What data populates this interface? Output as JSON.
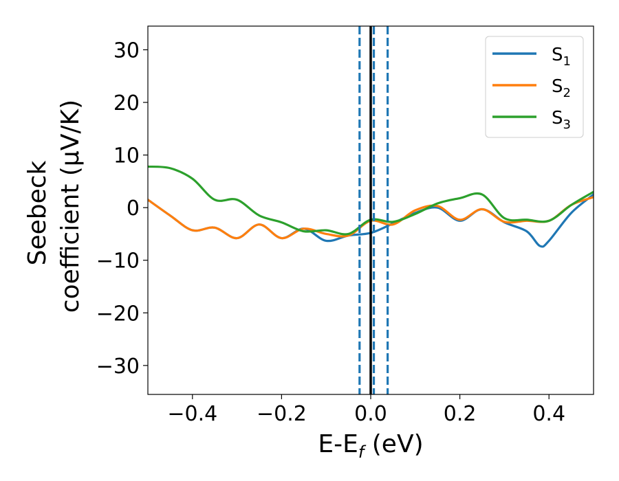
{
  "chart_data": {
    "type": "line",
    "xlabel": "E-E",
    "xlabel_sub": "f",
    "xlabel_unit": " (eV)",
    "ylabel_line1": "Seebeck",
    "ylabel_line2": "coefficient  (μV/K)",
    "xlim": [
      -0.5,
      0.5
    ],
    "ylim": [
      -35.5,
      34.5
    ],
    "x_ticks": [
      -0.4,
      -0.2,
      0.0,
      0.2,
      0.4
    ],
    "x_tick_labels": [
      "−0.4",
      "−0.2",
      "0.0",
      "0.2",
      "0.4"
    ],
    "y_ticks": [
      30,
      20,
      10,
      0,
      -10,
      -20,
      -30
    ],
    "y_tick_labels": [
      "30",
      "20",
      "10",
      "0",
      "−10",
      "−20",
      "−30"
    ],
    "grid": false,
    "legend_position": "top-right",
    "vertical_lines": [
      {
        "x": 0.0,
        "style": "solid",
        "color": "#000000"
      },
      {
        "x": -0.025,
        "style": "dashed",
        "color": "#1f77b4"
      },
      {
        "x": 0.007,
        "style": "dashed",
        "color": "#1f77b4"
      },
      {
        "x": 0.038,
        "style": "dashed",
        "color": "#1f77b4"
      }
    ],
    "series": [
      {
        "name": "S",
        "sub": "1",
        "color": "#1f77b4",
        "x": [
          -0.5,
          -0.45,
          -0.4,
          -0.35,
          -0.3,
          -0.25,
          -0.2,
          -0.15,
          -0.1,
          -0.05,
          0.0,
          0.05,
          0.1,
          0.15,
          0.2,
          0.25,
          0.3,
          0.35,
          0.38,
          0.4,
          0.45,
          0.5
        ],
        "y": [
          1.5,
          -1.5,
          -4.3,
          -3.8,
          -5.8,
          -3.2,
          -5.8,
          -4.0,
          -6.3,
          -5.3,
          -4.8,
          -3.0,
          -1.0,
          0.0,
          -2.5,
          -0.3,
          -2.8,
          -4.5,
          -7.3,
          -6.3,
          -1.0,
          2.5
        ]
      },
      {
        "name": "S",
        "sub": "2",
        "color": "#ff7f0e",
        "x": [
          -0.5,
          -0.45,
          -0.4,
          -0.35,
          -0.3,
          -0.25,
          -0.2,
          -0.15,
          -0.1,
          -0.05,
          0.0,
          0.05,
          0.1,
          0.15,
          0.2,
          0.25,
          0.3,
          0.35,
          0.4,
          0.45,
          0.5
        ],
        "y": [
          1.5,
          -1.5,
          -4.3,
          -3.8,
          -5.8,
          -3.2,
          -5.8,
          -4.0,
          -5.0,
          -5.3,
          -2.5,
          -3.2,
          -0.5,
          0.3,
          -2.3,
          -0.3,
          -2.7,
          -2.5,
          -2.5,
          0.5,
          2.0
        ]
      },
      {
        "name": "S",
        "sub": "3",
        "color": "#2ca02c",
        "x": [
          -0.5,
          -0.45,
          -0.4,
          -0.35,
          -0.3,
          -0.25,
          -0.2,
          -0.15,
          -0.1,
          -0.05,
          0.0,
          0.05,
          0.1,
          0.15,
          0.2,
          0.25,
          0.3,
          0.35,
          0.4,
          0.45,
          0.5
        ],
        "y": [
          7.8,
          7.5,
          5.5,
          1.5,
          1.5,
          -1.5,
          -2.8,
          -4.5,
          -4.3,
          -5.0,
          -2.3,
          -2.7,
          -1.2,
          0.8,
          1.8,
          2.5,
          -2.0,
          -2.3,
          -2.5,
          0.5,
          3.0
        ]
      }
    ]
  }
}
